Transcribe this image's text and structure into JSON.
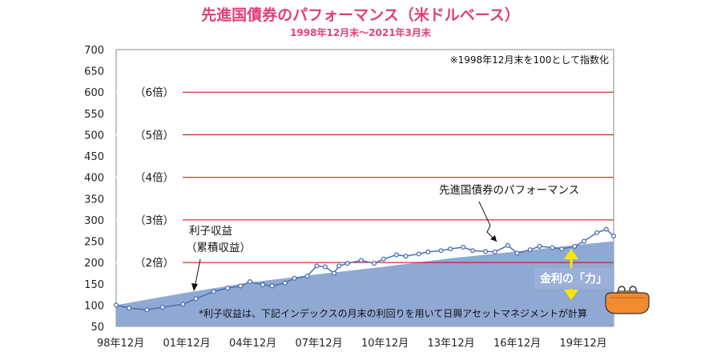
{
  "chart_data": {
    "type": "area",
    "title": "先進国債券のパフォーマンス（米ドルベース）",
    "subtitle": "1998年12月末～2021年3月末",
    "ylim": [
      50,
      700
    ],
    "y_ticks": [
      700,
      650,
      600,
      550,
      500,
      450,
      400,
      350,
      300,
      250,
      200,
      150,
      100,
      50
    ],
    "x_ticks": [
      "98年12月",
      "01年12月",
      "04年12月",
      "07年12月",
      "10年12月",
      "13年12月",
      "16年12月",
      "19年12月"
    ],
    "reference_lines": [
      {
        "value": 600,
        "label": "（6倍）"
      },
      {
        "value": 500,
        "label": "（5倍）"
      },
      {
        "value": 400,
        "label": "（4倍）"
      },
      {
        "value": 300,
        "label": "（3倍）"
      },
      {
        "value": 200,
        "label": "（2倍）"
      }
    ],
    "note_top": "※1998年12月末を100として指数化",
    "note_bottom": "*利子収益は、下記インデックスの月末の利回りを用いて日興アセットマネジメントが計算",
    "annotations": {
      "performance": "先進国債券のパフォーマンス",
      "interest_line1": "利子収益",
      "interest_line2": "（累積収益）",
      "power_badge": "金利の「力」"
    },
    "series": [
      {
        "name": "利子収益（累積収益）",
        "kind": "area",
        "color": "#8fa9d3",
        "points": [
          [
            1998.92,
            100
          ],
          [
            2001.92,
            128
          ],
          [
            2004.92,
            153
          ],
          [
            2007.92,
            172
          ],
          [
            2010.92,
            190
          ],
          [
            2013.92,
            210
          ],
          [
            2016.92,
            226
          ],
          [
            2019.92,
            243
          ],
          [
            2021.25,
            250
          ]
        ]
      },
      {
        "name": "先進国債券のパフォーマンス",
        "kind": "line",
        "color": "#4a6db5",
        "points": [
          [
            1998.92,
            100
          ],
          [
            1999.5,
            93
          ],
          [
            2000.3,
            89
          ],
          [
            2001.0,
            95
          ],
          [
            2001.92,
            102
          ],
          [
            2002.5,
            115
          ],
          [
            2003.3,
            132
          ],
          [
            2003.92,
            140
          ],
          [
            2004.5,
            145
          ],
          [
            2004.92,
            155
          ],
          [
            2005.5,
            148
          ],
          [
            2005.92,
            145
          ],
          [
            2006.5,
            152
          ],
          [
            2006.92,
            163
          ],
          [
            2007.5,
            168
          ],
          [
            2007.92,
            192
          ],
          [
            2008.3,
            190
          ],
          [
            2008.7,
            175
          ],
          [
            2008.92,
            192
          ],
          [
            2009.3,
            198
          ],
          [
            2009.92,
            205
          ],
          [
            2010.5,
            198
          ],
          [
            2010.92,
            208
          ],
          [
            2011.5,
            218
          ],
          [
            2011.92,
            215
          ],
          [
            2012.5,
            220
          ],
          [
            2012.92,
            225
          ],
          [
            2013.5,
            228
          ],
          [
            2013.92,
            232
          ],
          [
            2014.5,
            236
          ],
          [
            2014.92,
            228
          ],
          [
            2015.5,
            226
          ],
          [
            2015.92,
            225
          ],
          [
            2016.5,
            240
          ],
          [
            2016.92,
            222
          ],
          [
            2017.5,
            230
          ],
          [
            2017.92,
            238
          ],
          [
            2018.5,
            235
          ],
          [
            2018.92,
            232
          ],
          [
            2019.5,
            238
          ],
          [
            2019.92,
            250
          ],
          [
            2020.5,
            270
          ],
          [
            2020.92,
            278
          ],
          [
            2021.25,
            262
          ]
        ]
      }
    ]
  },
  "colors": {
    "title": "#e0407a",
    "area": "#8fa9d3",
    "line": "#4a6db5",
    "ref_line": "#cc0000",
    "badge": "#9ab0d8",
    "arrow": "#ffe600",
    "purse": "#f28a30"
  }
}
